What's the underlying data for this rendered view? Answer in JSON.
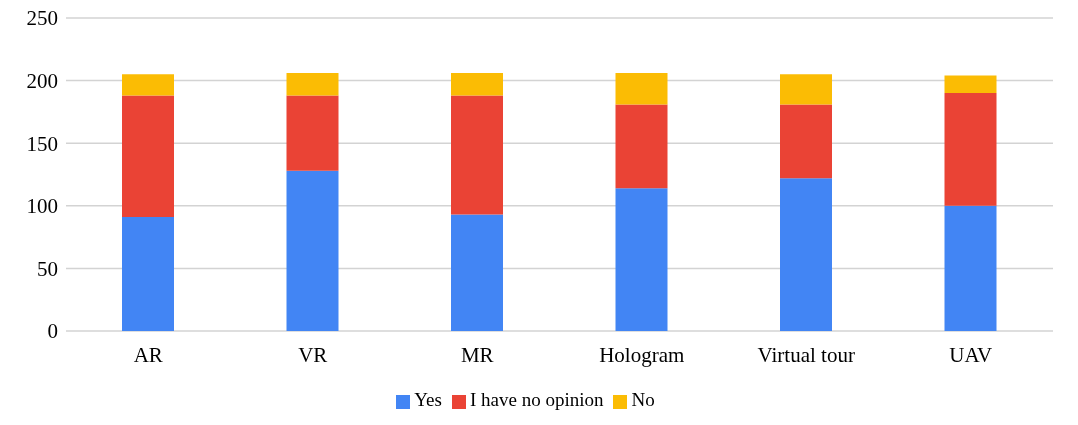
{
  "chart_data": {
    "type": "bar",
    "stacked": true,
    "categories": [
      "AR",
      "VR",
      "MR",
      "Hologram",
      "Virtual tour",
      "UAV"
    ],
    "series": [
      {
        "name": "Yes",
        "color": "#4285f4",
        "values": [
          91,
          128,
          93,
          114,
          122,
          100
        ]
      },
      {
        "name": "I have no opinion",
        "color": "#ea4335",
        "values": [
          97,
          60,
          95,
          67,
          59,
          90
        ]
      },
      {
        "name": "No",
        "color": "#fbbc04",
        "values": [
          17,
          18,
          18,
          25,
          24,
          14
        ]
      }
    ],
    "ylim": [
      0,
      250
    ],
    "yticks": [
      0,
      50,
      100,
      150,
      200,
      250
    ],
    "grid": "y",
    "legend": "bottom"
  }
}
